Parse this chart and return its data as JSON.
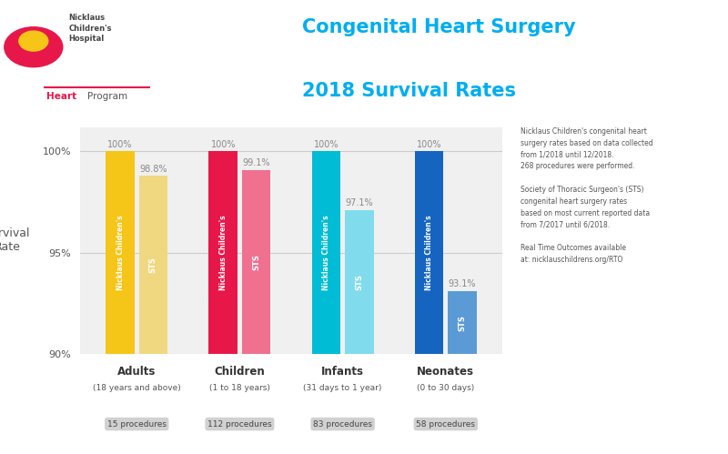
{
  "categories": [
    "Adults",
    "Children",
    "Infants",
    "Neonates"
  ],
  "subtitles": [
    "(18 years and above)",
    "(1 to 18 years)",
    "(31 days to 1 year)",
    "(0 to 30 days)"
  ],
  "procedures": [
    "15 procedures",
    "112 procedures",
    "83 procedures",
    "58 procedures"
  ],
  "nicklaus_values": [
    100,
    100,
    100,
    100
  ],
  "sts_values": [
    98.8,
    99.1,
    97.1,
    93.1
  ],
  "nicklaus_colors": [
    "#F5C518",
    "#E8174A",
    "#00BCD4",
    "#1565C0"
  ],
  "sts_colors": [
    "#F0D880",
    "#F07090",
    "#80DCEC",
    "#5B9BD5"
  ],
  "nicklaus_label": "Nicklaus Children's",
  "sts_label": "STS",
  "ylim": [
    90,
    101.2
  ],
  "yticks": [
    90,
    95,
    100
  ],
  "ytick_labels": [
    "90%",
    "95%",
    "100%"
  ],
  "ylabel": "Survival\nRate",
  "title_line1": "Congenital Heart Surgery",
  "title_line2": "2018 Survival Rates",
  "title_color": "#00AEEF",
  "footnote": "Nicklaus Children's congenital heart\nsurgery rates based on data collected\nfrom 1/2018 until 12/2018.\n268 procedures were performed.\n\nSociety of Thoracic Surgeon's (STS)\ncongenital heart surgery rates\nbased on most current reported data\nfrom 7/2017 until 6/2018.\n\nReal Time Outcomes available\nat: nicklauschildrens.org/RTO",
  "background_color": "#FFFFFF",
  "plot_bg_color": "#F0F0F0",
  "bar_width": 0.28,
  "bar_gap": 0.04
}
